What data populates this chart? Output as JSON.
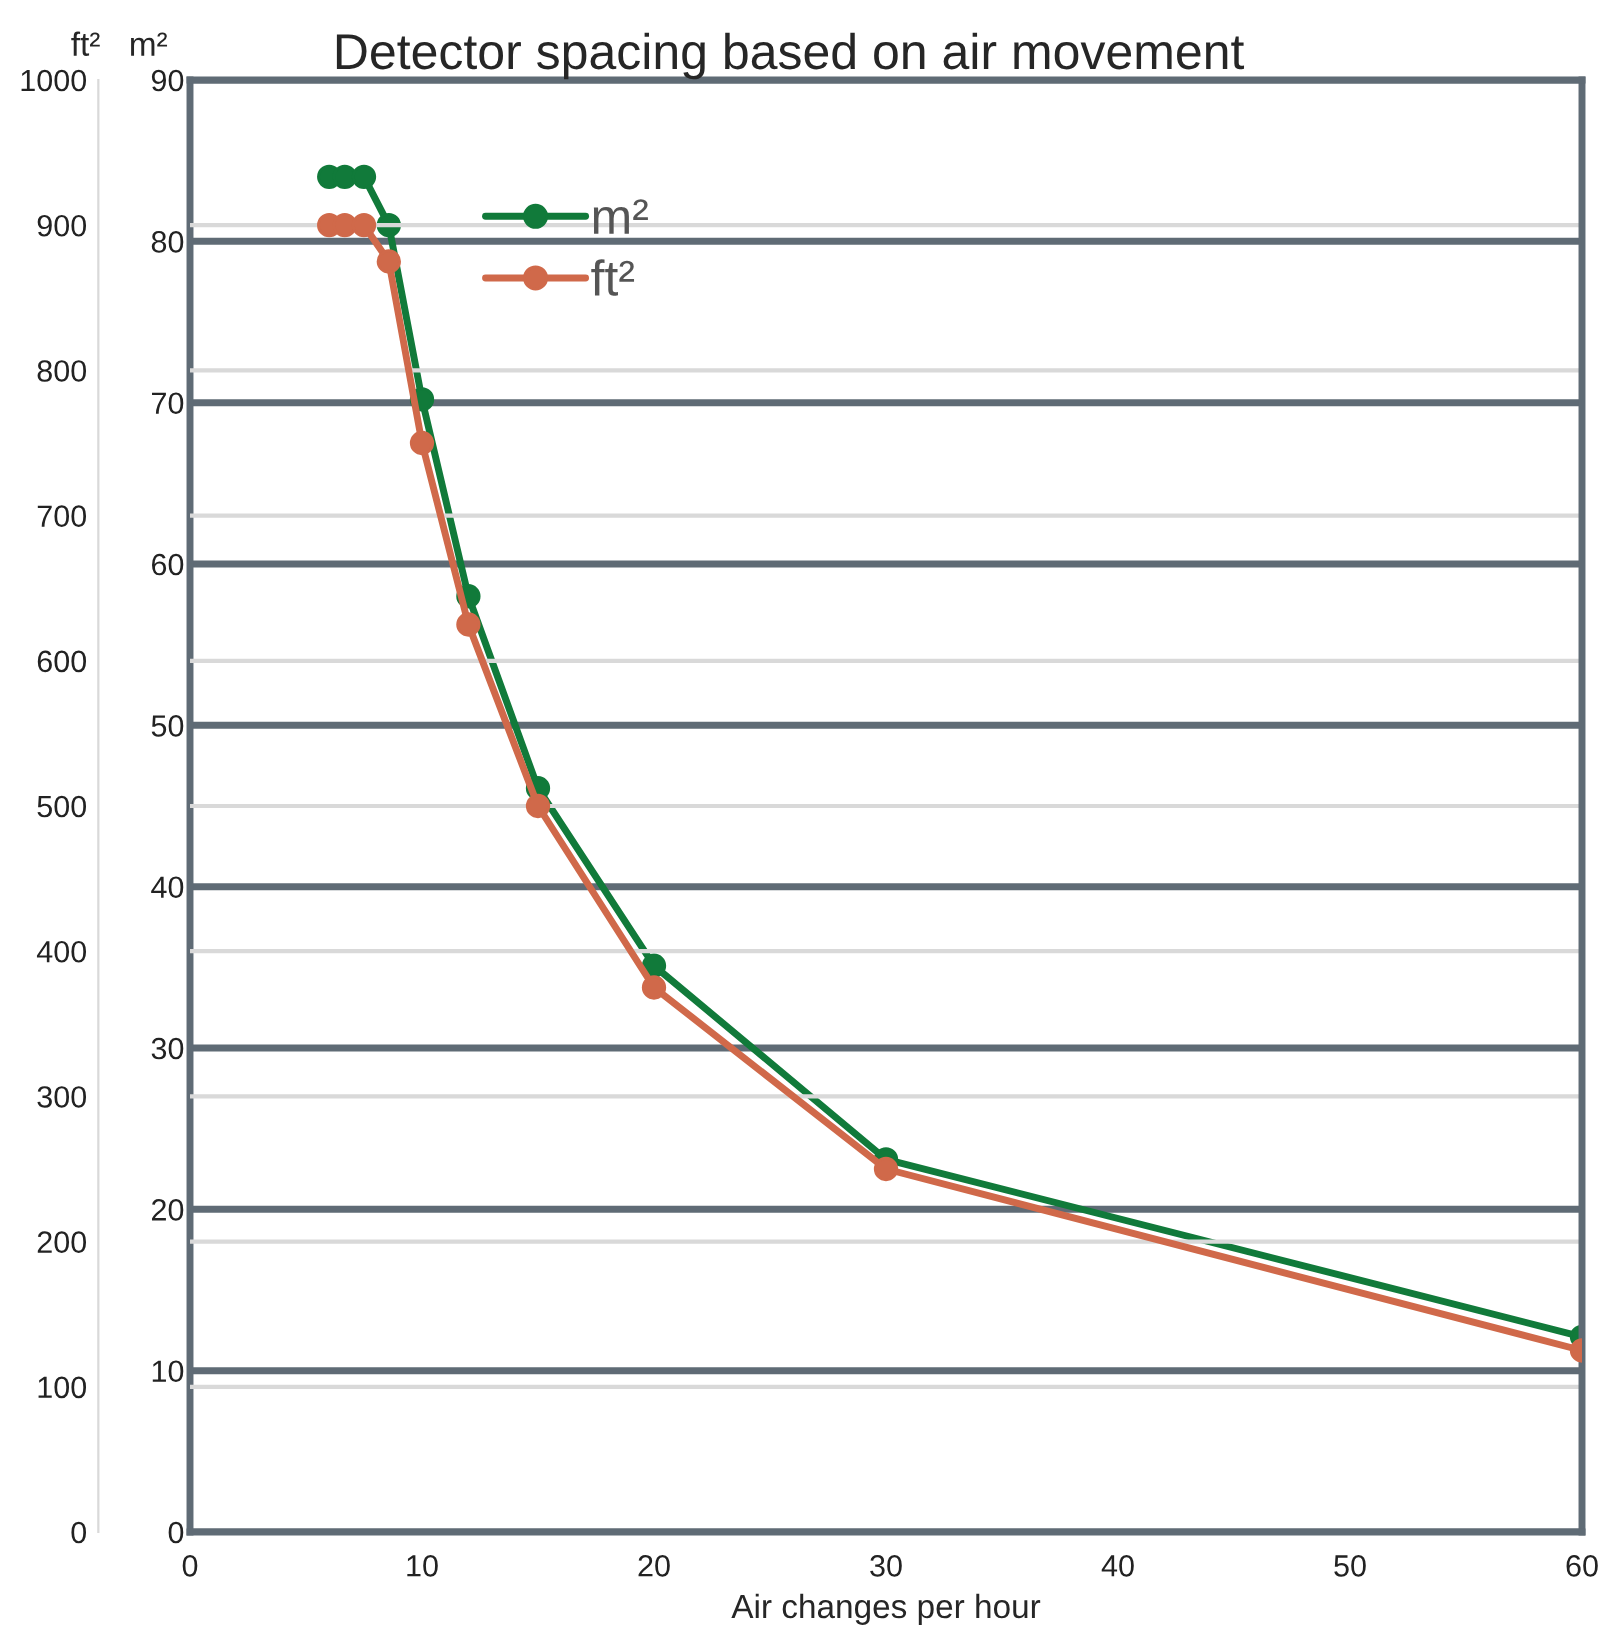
{
  "chart_data": {
    "type": "line",
    "title": "Detector spacing based on air movement",
    "xlabel": "Air changes per hour",
    "ylabel": "ft²",
    "y2label": "m²",
    "x": [
      6,
      6.67,
      7.5,
      8.57,
      10,
      12,
      15,
      20,
      30,
      60
    ],
    "series": [
      {
        "name": "m²",
        "color": "#117a3a",
        "axis": "y2",
        "values": [
          84.0,
          84.0,
          84.0,
          81.0,
          70.2,
          58.0,
          46.1,
          35.1,
          23.1,
          12.1
        ]
      },
      {
        "name": "ft²",
        "color": "#d0694a",
        "values": [
          900,
          900,
          900,
          875,
          750,
          625,
          500,
          375,
          250,
          125
        ]
      }
    ],
    "xlim": [
      0,
      60
    ],
    "xticks": [
      0,
      10,
      20,
      30,
      40,
      50,
      60
    ],
    "ylim": [
      0,
      1000
    ],
    "yticks": [
      0,
      100,
      200,
      300,
      400,
      500,
      600,
      700,
      800,
      900,
      1000
    ],
    "y2lim": [
      0,
      90
    ],
    "y2ticks": [
      0,
      10,
      20,
      30,
      40,
      50,
      60,
      70,
      80,
      90
    ],
    "grid": true,
    "legend": "top left",
    "marker": "circle",
    "line_style": "solid"
  }
}
